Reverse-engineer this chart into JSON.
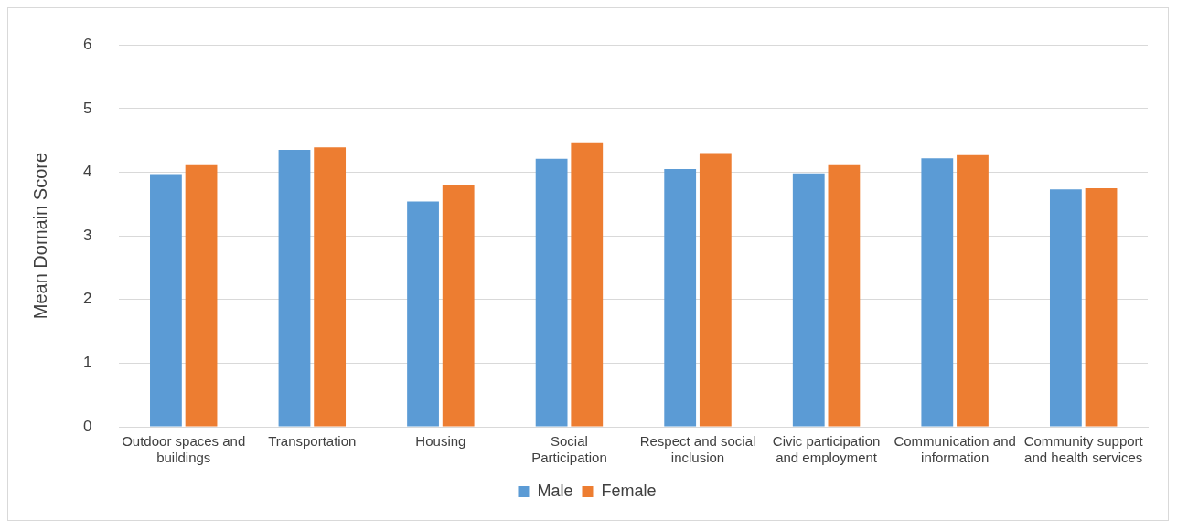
{
  "chart_data": {
    "type": "bar",
    "ylabel": "Mean Domain Score",
    "categories": [
      "Outdoor spaces and buildings",
      "Transportation",
      "Housing",
      "Social Participation",
      "Respect and social inclusion",
      "Civic participation and employment",
      "Communication and information",
      "Community support and health services"
    ],
    "series": [
      {
        "name": "Male",
        "color": "#5b9bd5",
        "values": [
          3.97,
          4.35,
          3.54,
          4.21,
          4.05,
          3.98,
          4.22,
          3.73
        ]
      },
      {
        "name": "Female",
        "color": "#ed7d31",
        "values": [
          4.11,
          4.39,
          3.8,
          4.47,
          4.3,
          4.11,
          4.27,
          3.75
        ]
      }
    ],
    "ylim": [
      0,
      6
    ],
    "yticks": [
      0,
      1,
      2,
      3,
      4,
      5,
      6
    ],
    "grid": "y",
    "legend": "bottom"
  }
}
